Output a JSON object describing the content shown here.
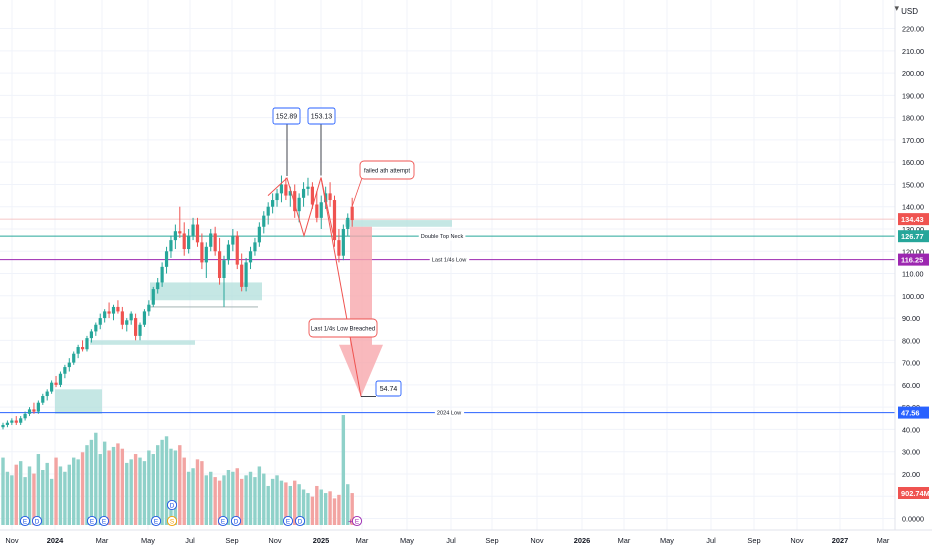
{
  "currency": "USD",
  "colors": {
    "up": "#26a69a",
    "down": "#ef5350",
    "up_vol": "#8fd1c9",
    "down_vol": "#f2a4a2",
    "zone": "#b2dfdb",
    "neck": "#26a69a",
    "quarter_low": "#9c27b0",
    "year_low": "#2962ff",
    "arrow": "#f7a8ac",
    "grid": "#f0f3fa"
  },
  "chart_data": {
    "type": "candlestick",
    "y_range": [
      0,
      225
    ],
    "y_ticks": [
      "220.00",
      "210.00",
      "200.00",
      "190.00",
      "180.00",
      "170.00",
      "160.00",
      "150.00",
      "140.00",
      "130.00",
      "120.00",
      "110.00",
      "100.00",
      "90.00",
      "80.00",
      "70.00",
      "60.00",
      "50.00",
      "40.00",
      "30.00",
      "20.00",
      "10.00",
      "0.0000"
    ],
    "x_ticks": [
      "Nov",
      "2024",
      "Mar",
      "May",
      "Jul",
      "Sep",
      "Nov",
      "2025",
      "Mar",
      "May",
      "Jul",
      "Sep",
      "Nov",
      "2026",
      "Mar",
      "May",
      "Jul",
      "Sep",
      "Nov",
      "2027",
      "Mar"
    ],
    "price_badges": [
      {
        "value": "134.43",
        "color": "#ef5350"
      },
      {
        "value": "126.77",
        "color": "#26a69a"
      },
      {
        "value": "116.25",
        "color": "#9c27b0"
      },
      {
        "value": "47.56",
        "color": "#2962ff"
      },
      {
        "value": "902.74M",
        "color": "#ef5350"
      }
    ],
    "levels": [
      {
        "label": "Double Top Neck",
        "value": 126.77
      },
      {
        "label": "Last 1/4s Low",
        "value": 116.25
      },
      {
        "label": "2024 Low",
        "value": 47.56
      }
    ],
    "peaks": [
      {
        "label": "152.89",
        "value": 152.89
      },
      {
        "label": "153.13",
        "value": 153.13
      }
    ],
    "target": {
      "label": "54.74",
      "value": 54.74
    },
    "annotations": [
      "failed ath attempt",
      "Last 1/4s Low Breached"
    ],
    "candles": [
      [
        41,
        43,
        40,
        42
      ],
      [
        42,
        44,
        41,
        43
      ],
      [
        43,
        45,
        42,
        44
      ],
      [
        44,
        46,
        42,
        43
      ],
      [
        43,
        46,
        42,
        45
      ],
      [
        45,
        48,
        44,
        47
      ],
      [
        47,
        50,
        46,
        49
      ],
      [
        49,
        52,
        47,
        48
      ],
      [
        48,
        53,
        47,
        52
      ],
      [
        52,
        56,
        51,
        55
      ],
      [
        55,
        58,
        53,
        57
      ],
      [
        57,
        62,
        56,
        61
      ],
      [
        61,
        64,
        59,
        60
      ],
      [
        60,
        66,
        59,
        65
      ],
      [
        65,
        69,
        63,
        68
      ],
      [
        68,
        72,
        66,
        70
      ],
      [
        70,
        75,
        69,
        74
      ],
      [
        74,
        78,
        72,
        77
      ],
      [
        77,
        80,
        75,
        76
      ],
      [
        76,
        82,
        75,
        81
      ],
      [
        81,
        85,
        79,
        84
      ],
      [
        84,
        88,
        82,
        87
      ],
      [
        87,
        92,
        85,
        90
      ],
      [
        90,
        94,
        88,
        93
      ],
      [
        93,
        97,
        90,
        92
      ],
      [
        92,
        96,
        89,
        95
      ],
      [
        95,
        98,
        92,
        93
      ],
      [
        93,
        95,
        85,
        87
      ],
      [
        87,
        90,
        84,
        89
      ],
      [
        89,
        93,
        87,
        92
      ],
      [
        90,
        92,
        80,
        82
      ],
      [
        82,
        88,
        80,
        87
      ],
      [
        87,
        94,
        86,
        93
      ],
      [
        93,
        98,
        91,
        96
      ],
      [
        96,
        104,
        95,
        103
      ],
      [
        103,
        108,
        101,
        106
      ],
      [
        106,
        115,
        104,
        113
      ],
      [
        113,
        122,
        110,
        120
      ],
      [
        120,
        127,
        117,
        125
      ],
      [
        125,
        132,
        121,
        129
      ],
      [
        129,
        140,
        126,
        128
      ],
      [
        128,
        133,
        118,
        121
      ],
      [
        121,
        130,
        119,
        127
      ],
      [
        127,
        135,
        125,
        132
      ],
      [
        132,
        135,
        122,
        124
      ],
      [
        124,
        128,
        112,
        115
      ],
      [
        115,
        124,
        108,
        122
      ],
      [
        122,
        130,
        120,
        128
      ],
      [
        128,
        131,
        118,
        120
      ],
      [
        120,
        126,
        105,
        108
      ],
      [
        108,
        118,
        95,
        116
      ],
      [
        116,
        125,
        114,
        123
      ],
      [
        123,
        130,
        120,
        127
      ],
      [
        127,
        129,
        112,
        114
      ],
      [
        114,
        119,
        102,
        104
      ],
      [
        104,
        117,
        102,
        115
      ],
      [
        115,
        122,
        112,
        120
      ],
      [
        120,
        126,
        118,
        124
      ],
      [
        124,
        133,
        122,
        131
      ],
      [
        131,
        138,
        128,
        136
      ],
      [
        136,
        142,
        132,
        140
      ],
      [
        140,
        146,
        137,
        143
      ],
      [
        143,
        148,
        140,
        146
      ],
      [
        146,
        154,
        142,
        150
      ],
      [
        150,
        153,
        143,
        145
      ],
      [
        145,
        149,
        140,
        147
      ],
      [
        147,
        150,
        135,
        138
      ],
      [
        138,
        146,
        133,
        144
      ],
      [
        144,
        151,
        140,
        148
      ],
      [
        148,
        153,
        145,
        149
      ],
      [
        149,
        151,
        139,
        141
      ],
      [
        141,
        147,
        133,
        135
      ],
      [
        135,
        145,
        130,
        142
      ],
      [
        142,
        149,
        139,
        146
      ],
      [
        146,
        151,
        140,
        143
      ],
      [
        143,
        145,
        122,
        125
      ],
      [
        125,
        130,
        115,
        118
      ],
      [
        118,
        132,
        116,
        130
      ],
      [
        130,
        137,
        127,
        135
      ],
      [
        140,
        144,
        131,
        134
      ]
    ],
    "volumes": [
      38,
      30,
      28,
      34,
      36,
      27,
      33,
      29,
      40,
      31,
      35,
      26,
      38,
      33,
      30,
      34,
      38,
      37,
      41,
      45,
      48,
      52,
      40,
      47,
      42,
      44,
      46,
      43,
      35,
      37,
      40,
      38,
      36,
      42,
      40,
      45,
      48,
      50,
      43,
      42,
      45,
      38,
      30,
      32,
      37,
      36,
      28,
      30,
      27,
      25,
      28,
      31,
      30,
      32,
      26,
      28,
      30,
      27,
      33,
      29,
      22,
      26,
      28,
      25,
      24,
      22,
      25,
      23,
      20,
      18,
      16,
      22,
      20,
      18,
      19,
      15,
      17,
      62,
      23,
      18
    ],
    "vol_max_label": "902.74M"
  }
}
